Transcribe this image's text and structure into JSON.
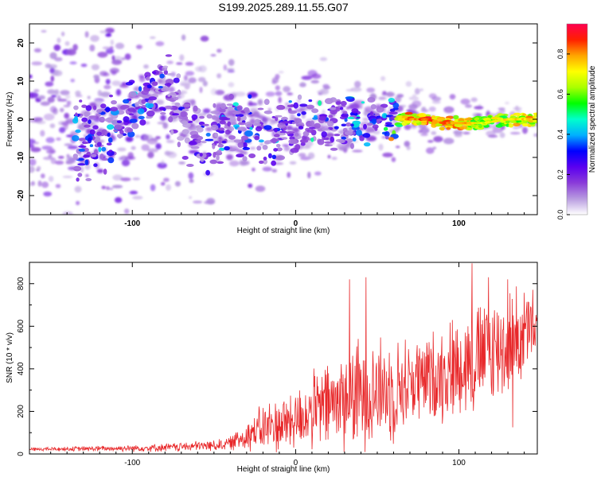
{
  "title": "S199.2025.289.11.55.G07",
  "chart_data": [
    {
      "type": "heatmap",
      "xlabel": "Height of straight line (km)",
      "ylabel": "Frequency (Hz)",
      "xlim": [
        -163,
        148
      ],
      "ylim": [
        -25,
        25
      ],
      "xticks": [
        -100,
        0,
        100
      ],
      "yticks": [
        -20,
        -10,
        0,
        10,
        20
      ],
      "colorbar": {
        "label": "Normalized spectral amplitude",
        "range": [
          0,
          0.95
        ],
        "ticks": [
          0.0,
          0.2,
          0.4,
          0.6,
          0.8
        ],
        "tick_labels": [
          "0.0",
          "0.2",
          "0.4",
          "0.6",
          "0.8"
        ],
        "colors": [
          "#ffffff",
          "#b89be0",
          "#8a3cd9",
          "#5a00f0",
          "#0000ff",
          "#00b0ff",
          "#00ffcc",
          "#00ff00",
          "#aaff00",
          "#ffff00",
          "#ffa500",
          "#ff2000",
          "#ff0050"
        ]
      },
      "description": "Scattered noise at low heights (purple speckles, widest spread below -100 km); energy concentrates near 0 Hz with increasing height; strong coherent ridge at ~0 Hz from ~65 to 145 km reaching amplitudes ~0.9.",
      "ridge": [
        {
          "x": -120,
          "f": -5,
          "a": 0.35
        },
        {
          "x": -95,
          "f": 3,
          "a": 0.3
        },
        {
          "x": -80,
          "f": 9,
          "a": 0.25
        },
        {
          "x": -60,
          "f": -7,
          "a": 0.3
        },
        {
          "x": -40,
          "f": -1,
          "a": 0.3
        },
        {
          "x": -20,
          "f": -3,
          "a": 0.3
        },
        {
          "x": 0,
          "f": -2,
          "a": 0.3
        },
        {
          "x": 30,
          "f": -1,
          "a": 0.35
        },
        {
          "x": 50,
          "f": 0,
          "a": 0.4
        },
        {
          "x": 70,
          "f": 0,
          "a": 0.85
        },
        {
          "x": 80,
          "f": 0,
          "a": 0.9
        },
        {
          "x": 90,
          "f": -1,
          "a": 0.85
        },
        {
          "x": 100,
          "f": -1,
          "a": 0.85
        },
        {
          "x": 115,
          "f": -1,
          "a": 0.7
        },
        {
          "x": 130,
          "f": 0,
          "a": 0.75
        },
        {
          "x": 145,
          "f": 0,
          "a": 0.8
        }
      ]
    },
    {
      "type": "line",
      "xlabel": "Height of straight line (km)",
      "ylabel": "SNR (10 * v/v)",
      "xlim": [
        -163,
        148
      ],
      "ylim": [
        0,
        900
      ],
      "xticks": [
        -100,
        0,
        100
      ],
      "yticks": [
        0,
        200,
        400,
        600,
        800
      ],
      "color": "#e8282a",
      "envelope": {
        "x": [
          -163,
          -120,
          -80,
          -50,
          -40,
          -30,
          -20,
          -10,
          0,
          10,
          20,
          30,
          40,
          50,
          60,
          70,
          80,
          90,
          100,
          110,
          120,
          130,
          140,
          148
        ],
        "mean": [
          22,
          25,
          30,
          40,
          50,
          90,
          120,
          140,
          160,
          200,
          230,
          260,
          280,
          300,
          300,
          340,
          350,
          380,
          420,
          450,
          480,
          520,
          560,
          600
        ],
        "amp": [
          8,
          12,
          18,
          25,
          30,
          70,
          110,
          130,
          140,
          170,
          200,
          230,
          250,
          240,
          230,
          200,
          200,
          220,
          230,
          250,
          250,
          240,
          220,
          150
        ]
      },
      "peaks": [
        {
          "x": 33,
          "y": 820
        },
        {
          "x": 43,
          "y": 830
        },
        {
          "x": 108,
          "y": 895
        },
        {
          "x": 118,
          "y": 830
        },
        {
          "x": 130,
          "y": 820
        },
        {
          "x": 133,
          "y": 125
        }
      ],
      "description": "Low, flat SNR (~20-50) below -40 km; rises sharply around -30 km; highly oscillatory between ~50 and ~850 above 0 km, increasing trend to ~600 near 148 km."
    }
  ]
}
